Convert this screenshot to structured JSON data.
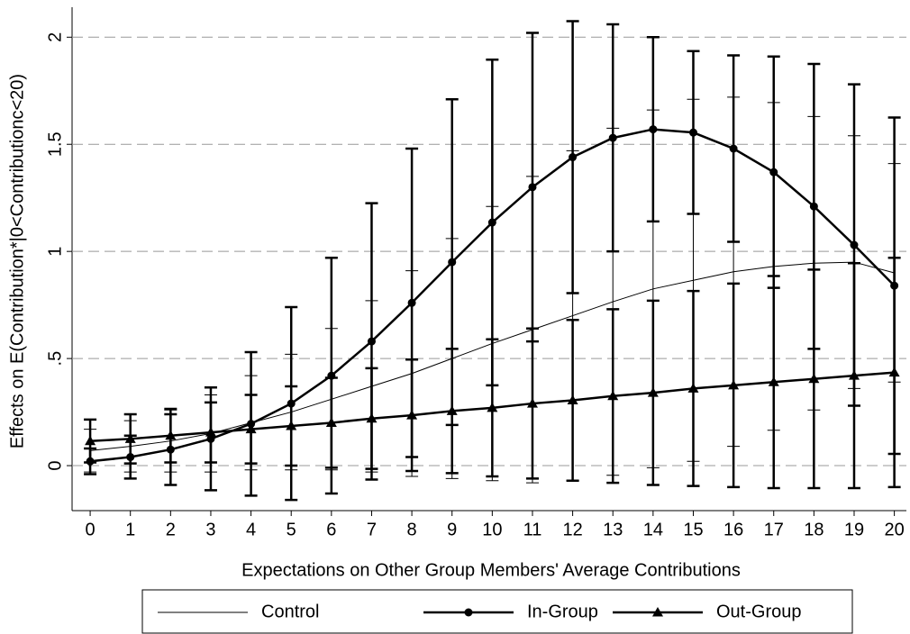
{
  "chart_data": {
    "type": "line",
    "x_label": "Expectations on Other Group Members' Average Contributions",
    "y_label": "Effects on E(Contribution*|0<Contributionc<20)",
    "x": [
      0,
      1,
      2,
      3,
      4,
      5,
      6,
      7,
      8,
      9,
      10,
      11,
      12,
      13,
      14,
      15,
      16,
      17,
      18,
      19,
      20
    ],
    "xlim": [
      -0.45,
      20.3
    ],
    "xticks": [
      0,
      1,
      2,
      3,
      4,
      5,
      6,
      7,
      8,
      9,
      10,
      11,
      12,
      13,
      14,
      15,
      16,
      17,
      18,
      19,
      20
    ],
    "ylim": [
      -0.21,
      2.14
    ],
    "yticks": [
      0,
      {
        "value": 0.5,
        "label": ".5"
      },
      1,
      1.5,
      2
    ],
    "grid": true,
    "legend": "bottom",
    "series": [
      {
        "name": "Control",
        "color": "#000000",
        "marker": "none",
        "values": [
          0.07,
          0.09,
          0.115,
          0.15,
          0.2,
          0.25,
          0.31,
          0.37,
          0.43,
          0.5,
          0.57,
          0.635,
          0.7,
          0.765,
          0.825,
          0.865,
          0.905,
          0.93,
          0.945,
          0.95,
          0.9
        ],
        "error": [
          0.1,
          0.12,
          0.145,
          0.18,
          0.22,
          0.27,
          0.33,
          0.4,
          0.48,
          0.56,
          0.64,
          0.715,
          0.77,
          0.81,
          0.835,
          0.845,
          0.815,
          0.765,
          0.685,
          0.59,
          0.51
        ]
      },
      {
        "name": "In-Group",
        "color": "#000000",
        "marker": "circle",
        "values": [
          0.02,
          0.04,
          0.075,
          0.125,
          0.195,
          0.29,
          0.42,
          0.58,
          0.76,
          0.95,
          1.135,
          1.3,
          1.44,
          1.53,
          1.57,
          1.555,
          1.48,
          1.37,
          1.21,
          1.03,
          0.84
        ],
        "error": [
          0.06,
          0.1,
          0.165,
          0.24,
          0.335,
          0.45,
          0.55,
          0.645,
          0.72,
          0.76,
          0.76,
          0.72,
          0.635,
          0.53,
          0.43,
          0.38,
          0.435,
          0.54,
          0.665,
          0.75,
          0.785
        ]
      },
      {
        "name": "Out-Group",
        "color": "#000000",
        "marker": "triangle",
        "values": [
          0.115,
          0.125,
          0.14,
          0.155,
          0.17,
          0.185,
          0.2,
          0.22,
          0.235,
          0.255,
          0.27,
          0.29,
          0.305,
          0.325,
          0.34,
          0.36,
          0.375,
          0.39,
          0.405,
          0.42,
          0.435
        ],
        "error": [
          0.1,
          0.115,
          0.125,
          0.14,
          0.16,
          0.185,
          0.21,
          0.235,
          0.26,
          0.29,
          0.32,
          0.35,
          0.375,
          0.405,
          0.43,
          0.455,
          0.475,
          0.495,
          0.51,
          0.525,
          0.535
        ]
      }
    ]
  }
}
